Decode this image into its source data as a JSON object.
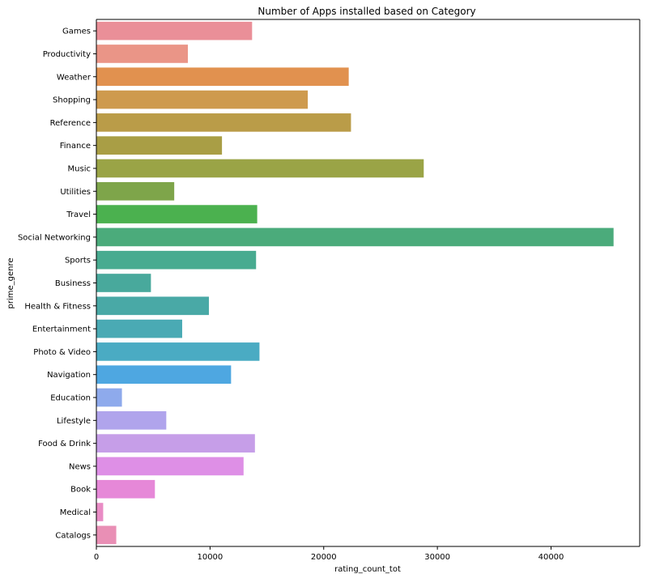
{
  "chart_data": {
    "type": "bar",
    "orientation": "horizontal",
    "title": "Number of Apps installed based on Category",
    "xlabel": "rating_count_tot",
    "ylabel": "prime_genre",
    "xlim": [
      0,
      47800
    ],
    "xticks": [
      0,
      10000,
      20000,
      30000,
      40000
    ],
    "grid": false,
    "categories": [
      "Games",
      "Productivity",
      "Weather",
      "Shopping",
      "Reference",
      "Finance",
      "Music",
      "Utilities",
      "Travel",
      "Social Networking",
      "Sports",
      "Business",
      "Health & Fitness",
      "Entertainment",
      "Photo & Video",
      "Navigation",
      "Education",
      "Lifestyle",
      "Food & Drink",
      "News",
      "Book",
      "Medical",
      "Catalogs"
    ],
    "values": [
      13700,
      8050,
      22200,
      18600,
      22400,
      11050,
      28800,
      6850,
      14150,
      45500,
      14050,
      4800,
      9900,
      7550,
      14350,
      11850,
      2250,
      6150,
      13950,
      12950,
      5150,
      600,
      1750
    ],
    "colors": [
      "#ea8f98",
      "#ea9587",
      "#e1914f",
      "#ce9a4e",
      "#ba9c48",
      "#a99e45",
      "#9aa446",
      "#7ea54a",
      "#4bb14f",
      "#4bab7b",
      "#48ab90",
      "#48a99c",
      "#49a9a6",
      "#4aaab4",
      "#4aabc3",
      "#4ea7e1",
      "#8eaaec",
      "#b0a4ec",
      "#c69ee8",
      "#de8fe6",
      "#e688d8",
      "#e98cc5",
      "#e98fb5"
    ]
  }
}
